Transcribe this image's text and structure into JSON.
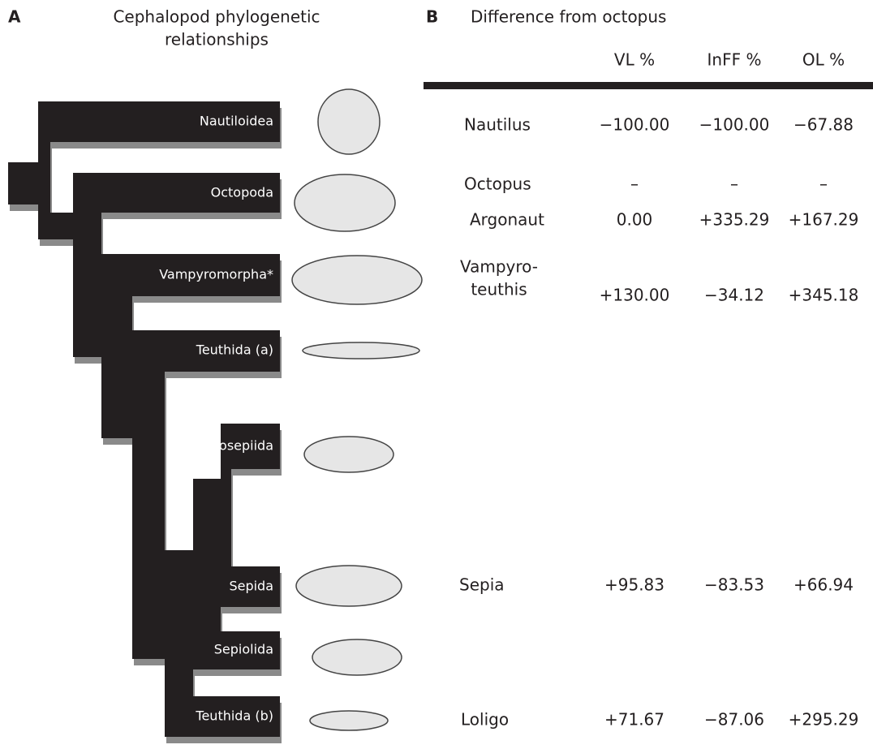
{
  "panel_a": {
    "label": "A",
    "title_lines": [
      "Cephalopod phylogenetic",
      "relationships"
    ],
    "taxa": [
      "Nautiloidea",
      "Octopoda",
      "Vampyromorpha*",
      "Teuthida (a)",
      "Idiosepiida",
      "Sepida",
      "Sepiolida",
      "Teuthida (b)"
    ]
  },
  "panel_b": {
    "label": "B",
    "title": "Difference from octopus",
    "columns": [
      "VL %",
      "InFF %",
      "OL %"
    ],
    "rows": [
      {
        "name": [
          "Nautilus"
        ],
        "values": [
          "−100.00",
          "−100.00",
          "−67.88"
        ]
      },
      {
        "name": [
          "Octopus"
        ],
        "values": [
          "–",
          "–",
          "–"
        ]
      },
      {
        "name": [
          "Argonaut"
        ],
        "values": [
          "0.00",
          "+335.29",
          "+167.29"
        ]
      },
      {
        "name": [
          "Vampyro-",
          "teuthis"
        ],
        "values": [
          "+130.00",
          "−34.12",
          "+345.18"
        ]
      },
      {
        "name": [
          "Sepia"
        ],
        "values": [
          "+95.83",
          "−83.53",
          "+66.94"
        ]
      },
      {
        "name": [
          "Loligo"
        ],
        "values": [
          "+71.67",
          "−87.06",
          "+295.29"
        ]
      }
    ]
  }
}
